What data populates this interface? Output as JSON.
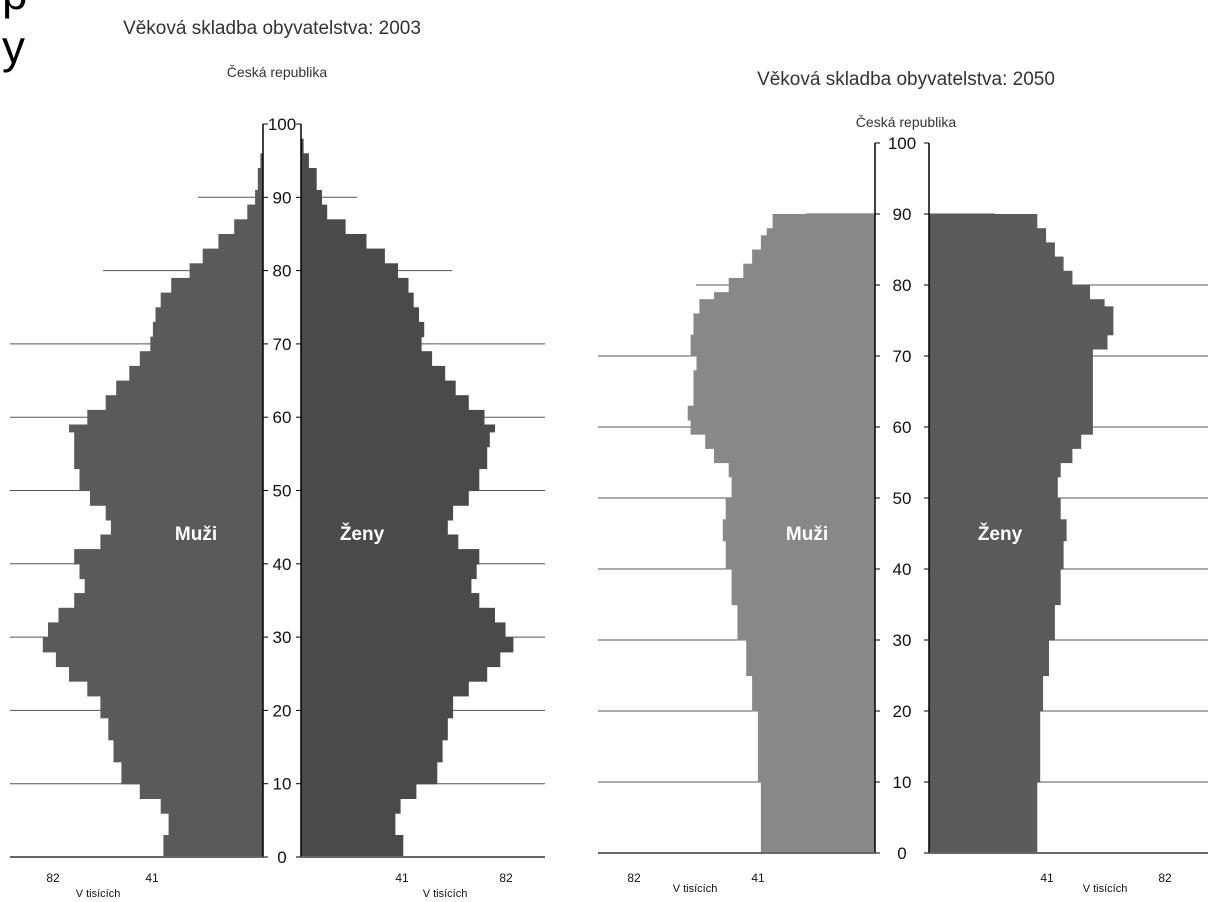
{
  "page_text_cut": "p y",
  "chart_data": [
    {
      "type": "population-pyramid",
      "title": "Věková skladba obyvatelstva: 2003",
      "subtitle": "Česká republika",
      "ylim": [
        0,
        100
      ],
      "yticks": [
        "0",
        "10",
        "20",
        "30",
        "40",
        "50",
        "60",
        "70",
        "80",
        "90",
        "100"
      ],
      "xtick_labels_left": [
        "82",
        "41"
      ],
      "xtick_labels_right": [
        "41",
        "82"
      ],
      "unit_label_left": "V tisících",
      "unit_label_right": "V tisících",
      "male_label": "Muži",
      "female_label": "Ženy",
      "max_value": 82,
      "colors": {
        "male": "#5a5a5a",
        "female": "#4a4a4a"
      },
      "male": [
        {
          "age": 0,
          "value": 38
        },
        {
          "age": 3,
          "value": 36
        },
        {
          "age": 6,
          "value": 39
        },
        {
          "age": 8,
          "value": 47
        },
        {
          "age": 10,
          "value": 54
        },
        {
          "age": 13,
          "value": 57
        },
        {
          "age": 16,
          "value": 59
        },
        {
          "age": 19,
          "value": 62
        },
        {
          "age": 22,
          "value": 67
        },
        {
          "age": 24,
          "value": 74
        },
        {
          "age": 26,
          "value": 79
        },
        {
          "age": 28,
          "value": 84
        },
        {
          "age": 30,
          "value": 82
        },
        {
          "age": 32,
          "value": 78
        },
        {
          "age": 34,
          "value": 72
        },
        {
          "age": 36,
          "value": 68
        },
        {
          "age": 38,
          "value": 70
        },
        {
          "age": 40,
          "value": 72
        },
        {
          "age": 42,
          "value": 62
        },
        {
          "age": 44,
          "value": 58
        },
        {
          "age": 46,
          "value": 60
        },
        {
          "age": 48,
          "value": 66
        },
        {
          "age": 50,
          "value": 70
        },
        {
          "age": 53,
          "value": 72
        },
        {
          "age": 56,
          "value": 72
        },
        {
          "age": 58,
          "value": 74
        },
        {
          "age": 59,
          "value": 67
        },
        {
          "age": 61,
          "value": 60
        },
        {
          "age": 63,
          "value": 56
        },
        {
          "age": 65,
          "value": 51
        },
        {
          "age": 67,
          "value": 47
        },
        {
          "age": 69,
          "value": 43
        },
        {
          "age": 71,
          "value": 42
        },
        {
          "age": 73,
          "value": 41
        },
        {
          "age": 75,
          "value": 39
        },
        {
          "age": 77,
          "value": 35
        },
        {
          "age": 79,
          "value": 28
        },
        {
          "age": 81,
          "value": 23
        },
        {
          "age": 83,
          "value": 17
        },
        {
          "age": 85,
          "value": 11
        },
        {
          "age": 87,
          "value": 6
        },
        {
          "age": 89,
          "value": 3
        },
        {
          "age": 91,
          "value": 2
        },
        {
          "age": 94,
          "value": 1
        },
        {
          "age": 96,
          "value": 0
        }
      ],
      "female": [
        {
          "age": 0,
          "value": 39
        },
        {
          "age": 3,
          "value": 36
        },
        {
          "age": 6,
          "value": 38
        },
        {
          "age": 8,
          "value": 44
        },
        {
          "age": 10,
          "value": 52
        },
        {
          "age": 13,
          "value": 54
        },
        {
          "age": 16,
          "value": 56
        },
        {
          "age": 19,
          "value": 58
        },
        {
          "age": 22,
          "value": 64
        },
        {
          "age": 24,
          "value": 71
        },
        {
          "age": 26,
          "value": 76
        },
        {
          "age": 28,
          "value": 81
        },
        {
          "age": 30,
          "value": 78
        },
        {
          "age": 32,
          "value": 74
        },
        {
          "age": 34,
          "value": 68
        },
        {
          "age": 36,
          "value": 65
        },
        {
          "age": 38,
          "value": 67
        },
        {
          "age": 40,
          "value": 68
        },
        {
          "age": 42,
          "value": 60
        },
        {
          "age": 44,
          "value": 56
        },
        {
          "age": 46,
          "value": 58
        },
        {
          "age": 48,
          "value": 64
        },
        {
          "age": 50,
          "value": 68
        },
        {
          "age": 53,
          "value": 71
        },
        {
          "age": 56,
          "value": 72
        },
        {
          "age": 58,
          "value": 74
        },
        {
          "age": 59,
          "value": 70
        },
        {
          "age": 61,
          "value": 64
        },
        {
          "age": 63,
          "value": 59
        },
        {
          "age": 65,
          "value": 55
        },
        {
          "age": 67,
          "value": 50
        },
        {
          "age": 69,
          "value": 46
        },
        {
          "age": 71,
          "value": 47
        },
        {
          "age": 73,
          "value": 45
        },
        {
          "age": 75,
          "value": 43
        },
        {
          "age": 77,
          "value": 41
        },
        {
          "age": 79,
          "value": 37
        },
        {
          "age": 81,
          "value": 32
        },
        {
          "age": 83,
          "value": 25
        },
        {
          "age": 85,
          "value": 17
        },
        {
          "age": 87,
          "value": 10
        },
        {
          "age": 89,
          "value": 8
        },
        {
          "age": 91,
          "value": 6
        },
        {
          "age": 94,
          "value": 3
        },
        {
          "age": 96,
          "value": 1
        }
      ]
    },
    {
      "type": "population-pyramid",
      "title": "Věková skladba obyvatelstva: 2050",
      "subtitle": "Česká republika",
      "ylim": [
        0,
        100
      ],
      "yticks": [
        "0",
        "10",
        "20",
        "30",
        "40",
        "50",
        "60",
        "70",
        "80",
        "90",
        "100"
      ],
      "xtick_labels_left": [
        "82",
        "41"
      ],
      "xtick_labels_right": [
        "41",
        "82"
      ],
      "unit_label_left": "V tisících",
      "unit_label_right": "V tisících",
      "male_label": "Muži",
      "female_label": "Ženy",
      "max_value": 82,
      "colors": {
        "male": "#888888",
        "female": "#5a5a5a"
      },
      "male": [
        {
          "age": 0,
          "value": 39
        },
        {
          "age": 10,
          "value": 40
        },
        {
          "age": 20,
          "value": 42
        },
        {
          "age": 25,
          "value": 44
        },
        {
          "age": 30,
          "value": 47
        },
        {
          "age": 35,
          "value": 49
        },
        {
          "age": 40,
          "value": 51
        },
        {
          "age": 44,
          "value": 52
        },
        {
          "age": 47,
          "value": 51
        },
        {
          "age": 50,
          "value": 49
        },
        {
          "age": 53,
          "value": 50
        },
        {
          "age": 55,
          "value": 55
        },
        {
          "age": 57,
          "value": 58
        },
        {
          "age": 59,
          "value": 63
        },
        {
          "age": 61,
          "value": 64
        },
        {
          "age": 63,
          "value": 62
        },
        {
          "age": 65,
          "value": 62
        },
        {
          "age": 68,
          "value": 61
        },
        {
          "age": 70,
          "value": 63
        },
        {
          "age": 73,
          "value": 62
        },
        {
          "age": 76,
          "value": 60
        },
        {
          "age": 78,
          "value": 55
        },
        {
          "age": 79,
          "value": 50
        },
        {
          "age": 81,
          "value": 45
        },
        {
          "age": 83,
          "value": 42
        },
        {
          "age": 85,
          "value": 39
        },
        {
          "age": 87,
          "value": 37
        },
        {
          "age": 88,
          "value": 35
        }
      ],
      "female": [
        {
          "age": 0,
          "value": 37
        },
        {
          "age": 10,
          "value": 38
        },
        {
          "age": 20,
          "value": 39
        },
        {
          "age": 25,
          "value": 41
        },
        {
          "age": 30,
          "value": 43
        },
        {
          "age": 35,
          "value": 45
        },
        {
          "age": 40,
          "value": 46
        },
        {
          "age": 44,
          "value": 47
        },
        {
          "age": 47,
          "value": 45
        },
        {
          "age": 50,
          "value": 44
        },
        {
          "age": 53,
          "value": 45
        },
        {
          "age": 55,
          "value": 49
        },
        {
          "age": 57,
          "value": 52
        },
        {
          "age": 59,
          "value": 56
        },
        {
          "age": 61,
          "value": 56
        },
        {
          "age": 65,
          "value": 56
        },
        {
          "age": 69,
          "value": 56
        },
        {
          "age": 71,
          "value": 61
        },
        {
          "age": 73,
          "value": 63
        },
        {
          "age": 75,
          "value": 63
        },
        {
          "age": 77,
          "value": 60
        },
        {
          "age": 78,
          "value": 55
        },
        {
          "age": 80,
          "value": 49
        },
        {
          "age": 82,
          "value": 46
        },
        {
          "age": 84,
          "value": 43
        },
        {
          "age": 86,
          "value": 40
        },
        {
          "age": 88,
          "value": 37
        }
      ]
    }
  ]
}
